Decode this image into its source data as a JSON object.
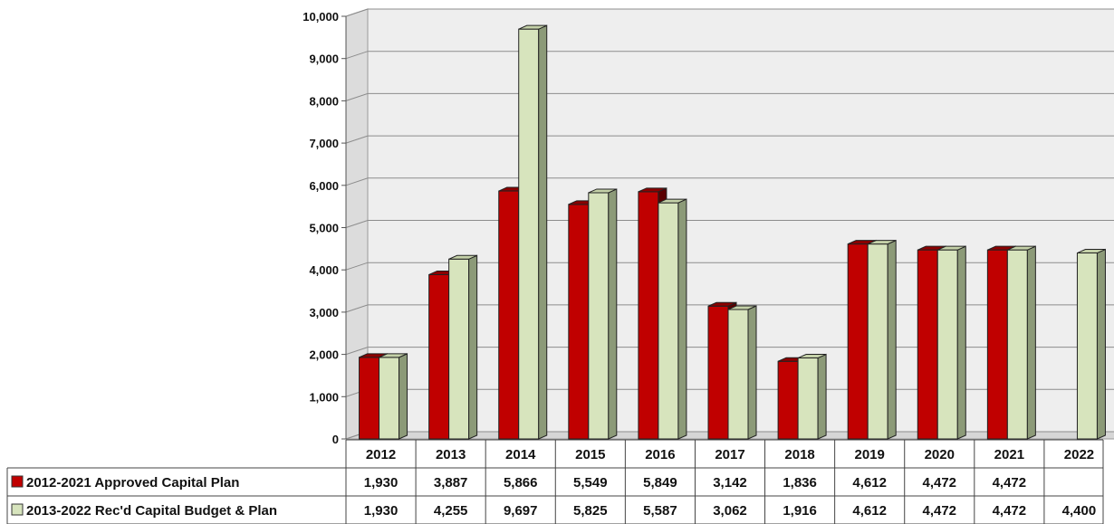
{
  "chart_data": {
    "type": "bar",
    "categories": [
      "2012",
      "2013",
      "2014",
      "2015",
      "2016",
      "2017",
      "2018",
      "2019",
      "2020",
      "2021",
      "2022"
    ],
    "series": [
      {
        "name": "2012-2021 Approved Capital Plan",
        "color": "#c00000",
        "values": [
          1930,
          3887,
          5866,
          5549,
          5849,
          3142,
          1836,
          4612,
          4472,
          4472,
          null
        ],
        "labels": [
          "1,930",
          "3,887",
          "5,866",
          "5,549",
          "5,849",
          "3,142",
          "1,836",
          "4,612",
          "4,472",
          "4,472",
          ""
        ]
      },
      {
        "name": "2013-2022 Rec'd Capital Budget & Plan",
        "color": "#d7e4bd",
        "values": [
          1930,
          4255,
          9697,
          5825,
          5587,
          3062,
          1916,
          4612,
          4472,
          4472,
          4400
        ],
        "labels": [
          "1,930",
          "4,255",
          "9,697",
          "5,825",
          "5,587",
          "3,062",
          "1,916",
          "4,612",
          "4,472",
          "4,472",
          "4,400"
        ]
      }
    ],
    "yticks": [
      "0",
      "1,000",
      "2,000",
      "3,000",
      "4,000",
      "5,000",
      "6,000",
      "7,000",
      "8,000",
      "9,000",
      "10,000"
    ],
    "ylim": [
      0,
      10000
    ],
    "grid": true,
    "legend": "data-table",
    "title": "",
    "xlabel": "",
    "ylabel": ""
  }
}
